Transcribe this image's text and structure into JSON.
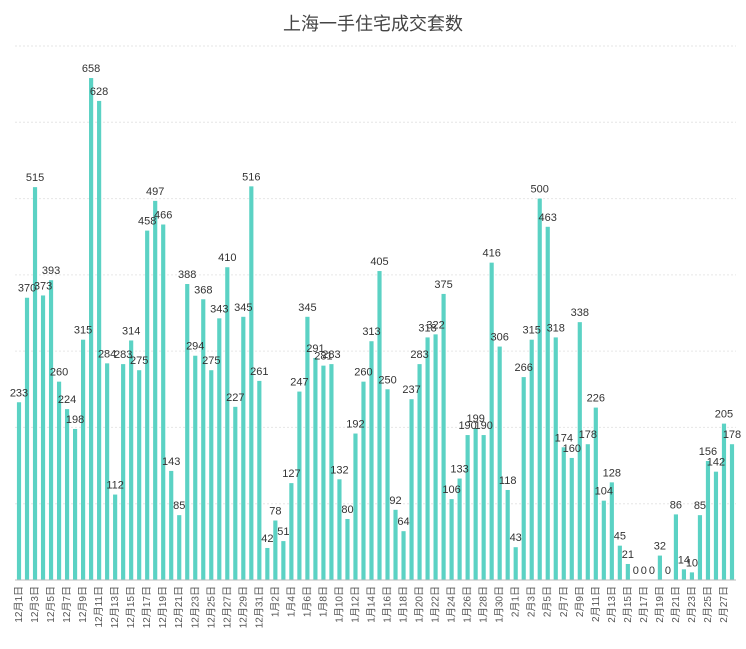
{
  "chart_data": {
    "type": "bar",
    "title": "上海一手住宅成交套数",
    "xlabel": "",
    "ylabel": "",
    "bar_color": "#5bd2c4",
    "grid": true,
    "ylim": [
      0,
      700
    ],
    "categories": [
      "12月1日",
      "12月2日",
      "12月3日",
      "12月4日",
      "12月5日",
      "12月6日",
      "12月7日",
      "12月8日",
      "12月9日",
      "12月10日",
      "12月11日",
      "12月12日",
      "12月13日",
      "12月14日",
      "12月15日",
      "12月16日",
      "12月17日",
      "12月18日",
      "12月19日",
      "12月20日",
      "12月21日",
      "12月22日",
      "12月23日",
      "12月24日",
      "12月25日",
      "12月26日",
      "12月27日",
      "12月28日",
      "12月29日",
      "12月30日",
      "12月31日",
      "1月1日",
      "1月2日",
      "1月3日",
      "1月4日",
      "1月5日",
      "1月6日",
      "1月7日",
      "1月8日",
      "1月9日",
      "1月10日",
      "1月11日",
      "1月12日",
      "1月13日",
      "1月14日",
      "1月15日",
      "1月16日",
      "1月17日",
      "1月18日",
      "1月19日",
      "1月20日",
      "1月21日",
      "1月22日",
      "1月23日",
      "1月24日",
      "1月25日",
      "1月26日",
      "1月27日",
      "1月28日",
      "1月29日",
      "1月30日",
      "1月31日",
      "2月1日",
      "2月2日",
      "2月3日",
      "2月4日",
      "2月5日",
      "2月6日",
      "2月7日",
      "2月8日",
      "2月9日",
      "2月10日",
      "2月11日",
      "2月12日",
      "2月13日",
      "2月14日",
      "2月15日",
      "2月16日",
      "2月17日",
      "2月18日",
      "2月19日",
      "2月20日",
      "2月21日",
      "2月22日",
      "2月23日",
      "2月24日",
      "2月25日",
      "2月26日",
      "2月27日",
      "2月28日"
    ],
    "values": [
      233,
      370,
      515,
      373,
      393,
      260,
      224,
      198,
      315,
      658,
      628,
      284,
      112,
      283,
      314,
      275,
      458,
      497,
      466,
      143,
      85,
      388,
      294,
      368,
      275,
      343,
      410,
      227,
      345,
      516,
      261,
      42,
      78,
      51,
      127,
      247,
      345,
      291,
      281,
      283,
      132,
      80,
      192,
      260,
      313,
      405,
      250,
      92,
      64,
      237,
      283,
      318,
      322,
      375,
      106,
      133,
      190,
      199,
      190,
      416,
      306,
      118,
      43,
      266,
      315,
      500,
      463,
      318,
      174,
      160,
      338,
      178,
      226,
      104,
      128,
      45,
      21,
      0,
      0,
      0,
      32,
      0,
      86,
      14,
      10,
      85,
      156,
      142,
      205,
      178
    ],
    "x_tick_labels": [
      "12月1日",
      "12月3日",
      "12月5日",
      "12月7日",
      "12月9日",
      "12月11日",
      "12月13日",
      "12月15日",
      "12月17日",
      "12月19日",
      "12月21日",
      "12月23日",
      "12月25日",
      "12月27日",
      "12月29日",
      "12月31日",
      "1月2日",
      "1月4日",
      "1月6日",
      "1月8日",
      "1月10日",
      "1月12日",
      "1月14日",
      "1月16日",
      "1月18日",
      "1月20日",
      "1月22日",
      "1月24日",
      "1月26日",
      "1月28日",
      "1月30日",
      "2月1日",
      "2月3日",
      "2月5日",
      "2月7日",
      "2月9日",
      "2月11日",
      "2月13日",
      "2月15日",
      "2月17日",
      "2月19日",
      "2月21日",
      "2月23日",
      "2月25日",
      "2月27日"
    ]
  }
}
